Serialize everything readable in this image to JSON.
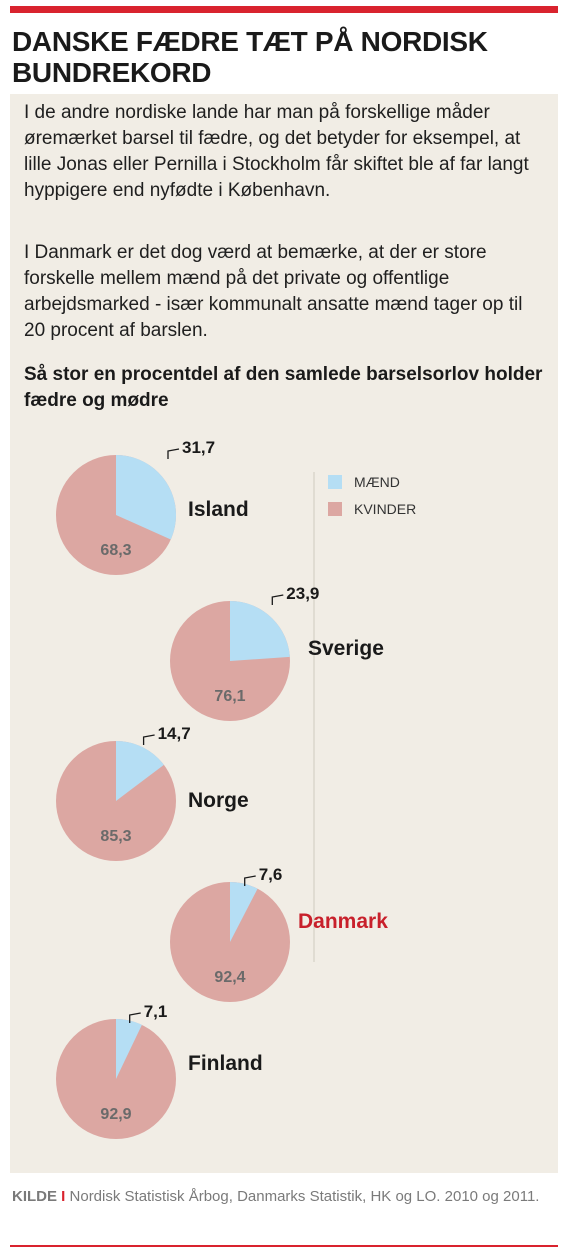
{
  "headline": "DANSKE FÆDRE TÆT PÅ NORDISK BUNDREKORD",
  "intro_paragraphs": [
    "I de andre nordiske lande har man på forskellige måder øremærket barsel til fædre, og det betyder for eksempel, at lille Jonas eller Pernilla i Stockholm får skiftet ble af far langt hyppigere end nyfødte i København.",
    "I Danmark er det dog værd at bemærke, at der er store forskelle mellem mænd på det private og offentlige arbejdsmarked - især kommunalt ansatte mænd tager op til 20 procent af barslen."
  ],
  "colors": {
    "men": "#b5def4",
    "women": "#dca7a2",
    "accent": "#d9232e",
    "highlight_label": "#c8202b",
    "panel_background": "#f1ede5"
  },
  "chart_data": {
    "type": "pie",
    "title": "Så stor en procentdel af den samlede barselsorlov holder fædre og mødre",
    "legend": {
      "placement": "top-right",
      "entries": [
        "MÆND",
        "KVINDER"
      ]
    },
    "series_names": [
      "MÆND",
      "KVINDER"
    ],
    "pies": [
      {
        "country": "Island",
        "men": 31.7,
        "women": 68.3,
        "men_label": "31,7",
        "women_label": "68,3",
        "highlight": false
      },
      {
        "country": "Sverige",
        "men": 23.9,
        "women": 76.1,
        "men_label": "23,9",
        "women_label": "76,1",
        "highlight": false
      },
      {
        "country": "Norge",
        "men": 14.7,
        "women": 85.3,
        "men_label": "14,7",
        "women_label": "85,3",
        "highlight": false
      },
      {
        "country": "Danmark",
        "men": 7.6,
        "women": 92.4,
        "men_label": "7,6",
        "women_label": "92,4",
        "highlight": true
      },
      {
        "country": "Finland",
        "men": 7.1,
        "women": 92.9,
        "men_label": "7,1",
        "women_label": "92,9",
        "highlight": false
      }
    ]
  },
  "source": {
    "label": "KILDE",
    "separator": "I",
    "text": "Nordisk Statistisk Årbog, Danmarks Statistik, HK og LO. 2010 og 2011."
  }
}
